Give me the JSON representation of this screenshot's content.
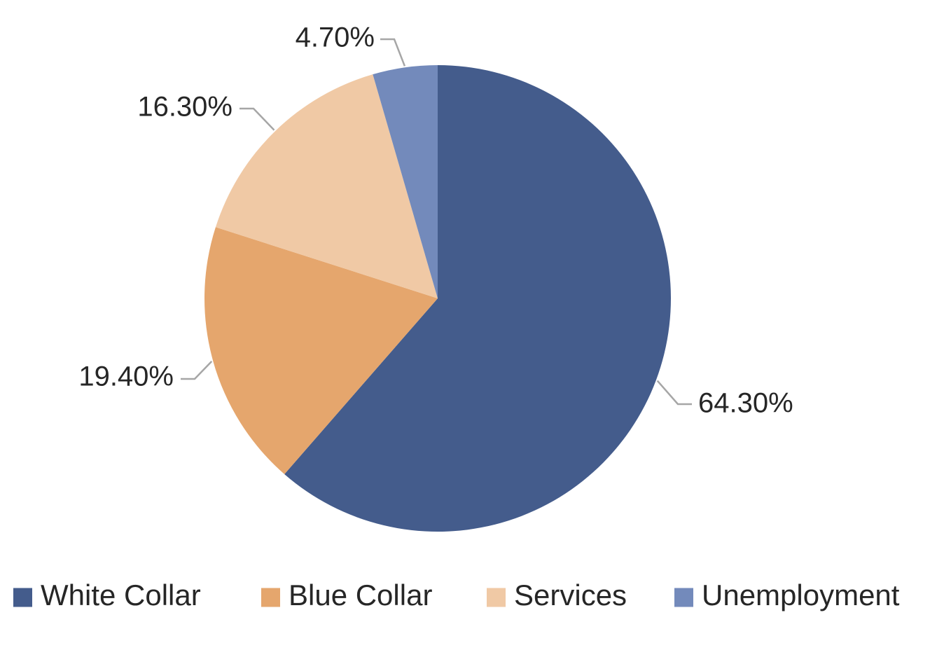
{
  "chart_data": {
    "type": "pie",
    "title": "",
    "categories": [
      "White Collar",
      "Blue Collar",
      "Services",
      "Unemployment"
    ],
    "values": [
      64.3,
      19.4,
      16.3,
      4.7
    ],
    "data_labels": [
      "64.30%",
      "19.40%",
      "16.30%",
      "4.70%"
    ],
    "colors": [
      "#445c8c",
      "#e5a66d",
      "#f0c9a5",
      "#738abb"
    ],
    "start_angle_deg": 0,
    "direction": "clockwise",
    "label_position": "outside with leader lines",
    "legend": {
      "position": "bottom",
      "entries": [
        "White Collar",
        "Blue Collar",
        "Services",
        "Unemployment"
      ]
    },
    "leader_line_color": "#a6a6a6"
  }
}
